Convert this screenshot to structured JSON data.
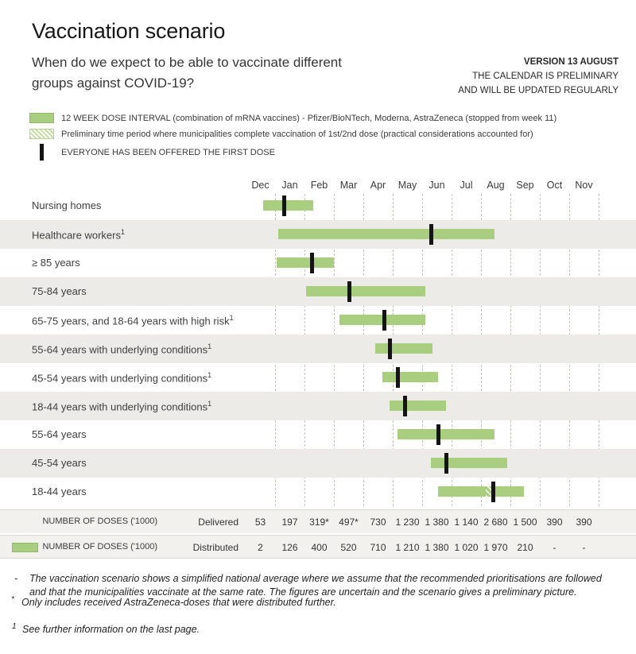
{
  "header": {
    "title": "Vaccination scenario",
    "subtitle": "When do we expect to be able to vaccinate different groups against COVID-19?",
    "version": [
      "VERSION 13 AUGUST",
      "THE CALENDAR IS PRELIMINARY",
      "AND WILL BE UPDATED REGULARLY"
    ]
  },
  "legend": {
    "items": [
      {
        "swatch": "solid-green-bar",
        "label": "12 WEEK DOSE INTERVAL (combination of mRNA vaccines) - Pfizer/BioNTech, Moderna, AstraZeneca (stopped from week 11)"
      },
      {
        "swatch": "hatched-green-bar",
        "label": "Preliminary time period where municipalities complete vaccination of 1st/2nd dose (practical considerations accounted for)"
      },
      {
        "swatch": "black-vertical-bar",
        "label": "EVERYONE HAS BEEN OFFERED THE FIRST DOSE"
      }
    ]
  },
  "chart_data": {
    "type": "bar",
    "variant": "horizontal-gantt-timeline",
    "title": "Vaccination scenario",
    "xlabel": "",
    "ylabel": "",
    "x_axis": {
      "tick_labels": [
        "Dec",
        "Jan",
        "Feb",
        "Mar",
        "Apr",
        "May",
        "Jun",
        "Jul",
        "Aug",
        "Sep",
        "Oct",
        "Nov"
      ],
      "unit": "month",
      "grid": "dashed-vertical"
    },
    "value_unit": "months since 1 Dec (0 = start of Dec)",
    "months": [
      "Dec",
      "Jan",
      "Feb",
      "Mar",
      "Apr",
      "May",
      "Jun",
      "Jul",
      "Aug",
      "Sep",
      "Oct",
      "Nov"
    ],
    "rows": [
      {
        "label": "Nursing homes",
        "footnote_mark": "",
        "start": 0.6,
        "end": 2.3,
        "first_dose_offered": 1.3
      },
      {
        "label": "Healthcare workers",
        "footnote_mark": "1",
        "start": 1.1,
        "end": 8.45,
        "first_dose_offered": 6.3
      },
      {
        "label": "≥ 85 years",
        "footnote_mark": "",
        "start": 1.05,
        "end": 3.0,
        "first_dose_offered": 2.25
      },
      {
        "label": "75-84 years",
        "footnote_mark": "",
        "start": 2.05,
        "end": 6.1,
        "first_dose_offered": 3.5
      },
      {
        "label": "65-75 years, and 18-64 years with high risk",
        "footnote_mark": "1",
        "start": 3.2,
        "end": 6.1,
        "first_dose_offered": 4.7
      },
      {
        "label": "55-64 years with underlying conditions",
        "footnote_mark": "1",
        "start": 4.4,
        "end": 6.35,
        "first_dose_offered": 4.9
      },
      {
        "label": "45-54 years with underlying conditions",
        "footnote_mark": "1",
        "start": 4.65,
        "end": 6.55,
        "first_dose_offered": 5.15
      },
      {
        "label": "18-44 years with underlying conditions",
        "footnote_mark": "1",
        "start": 4.9,
        "end": 6.8,
        "first_dose_offered": 5.4
      },
      {
        "label": "55-64 years",
        "footnote_mark": "",
        "start": 5.15,
        "end": 8.45,
        "first_dose_offered": 6.55
      },
      {
        "label": "45-54 years",
        "footnote_mark": "",
        "start": 6.3,
        "end": 8.9,
        "first_dose_offered": 6.8
      },
      {
        "label": "18-44 years",
        "footnote_mark": "",
        "start": 6.55,
        "end": 9.45,
        "first_dose_offered": 8.4,
        "hatch": [
          8.15,
          8.35
        ]
      }
    ]
  },
  "dose_table": {
    "rows": [
      {
        "row_label": "NUMBER OF DOSES ('1000)",
        "series": "Delivered",
        "swatch": false,
        "values": [
          "53",
          "197",
          "319*",
          "497*",
          "730",
          "1 230",
          "1 380",
          "1 140",
          "2 680",
          "1 500",
          "390",
          "390"
        ]
      },
      {
        "row_label": "NUMBER OF DOSES ('1000)",
        "series": "Distributed",
        "swatch": true,
        "values": [
          "2",
          "126",
          "400",
          "520",
          "710",
          "1 210",
          "1 380",
          "1 020",
          "1 970",
          "210",
          "-",
          "-"
        ]
      }
    ]
  },
  "footnotes": [
    {
      "marker": "-",
      "text": "The vaccination scenario shows a simplified national average where we assume that the recommended prioritisations are followed and that the municipalities vaccinate at the same rate. The figures are uncertain and the scenario gives a preliminary picture."
    },
    {
      "marker": "*",
      "text": "Only includes received AstraZeneca-doses that were distributed further."
    },
    {
      "marker": "1",
      "text": "See further information on the last page."
    }
  ],
  "colors": {
    "bar_green": "#a9ce80",
    "bar_green_border": "#93b96b",
    "marker_black": "#141414",
    "row_stripe": "#edebe7",
    "table_row_bg": "#f3f1ed",
    "gridline": "#c7c3bc"
  }
}
